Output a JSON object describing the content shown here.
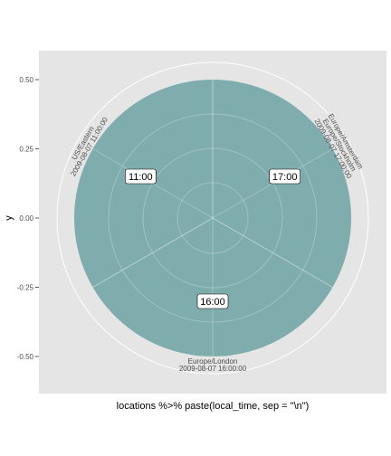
{
  "chart_data": {
    "type": "pie",
    "xlabel": "locations %>% paste(local_time, sep = \"\\n\")",
    "ylabel": "y",
    "y_ticks": [
      "0.50",
      "0.25",
      "0.00",
      "-0.25",
      "-0.50"
    ],
    "y_tick_values": [
      0.5,
      0.25,
      0,
      -0.25,
      -0.5
    ],
    "slices": [
      {
        "category_lines": [
          "Europe/Amsterdam",
          "Europe/Stockholm",
          "2009-08-07 17:00:00"
        ],
        "label": "17:00",
        "value": 1
      },
      {
        "category_lines": [
          "Europe/London",
          "2009-08-07 16:00:00"
        ],
        "label": "16:00",
        "value": 1
      },
      {
        "category_lines": [
          "US/Eastern",
          "2009-08-07 11:00:00"
        ],
        "label": "11:00",
        "value": 1
      }
    ],
    "colors": {
      "panel": "#e5e5e5",
      "fill": "#7fadad",
      "grid": "#ffffff"
    },
    "grid": true
  }
}
